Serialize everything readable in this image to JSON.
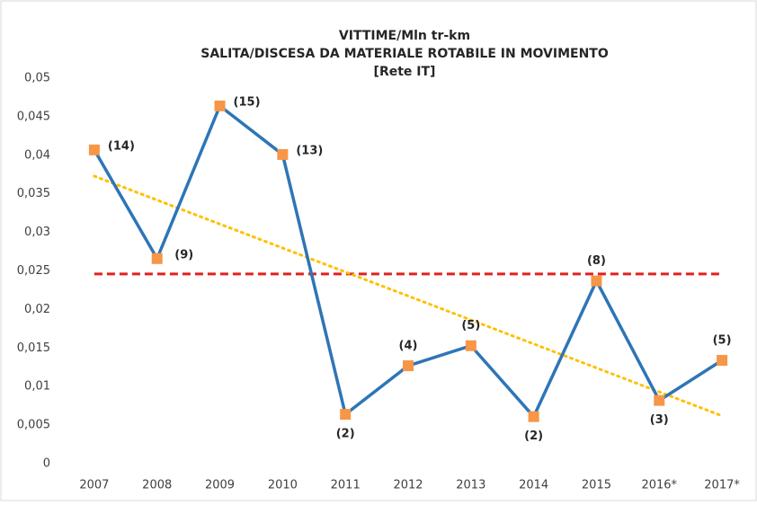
{
  "chart_data": {
    "type": "line",
    "title": [
      "VITTIME/Mln tr-km",
      "SALITA/DISCESA DA MATERIALE ROTABILE IN MOVIMENTO",
      "[Rete IT]"
    ],
    "categories": [
      "2007",
      "2008",
      "2009",
      "2010",
      "2011",
      "2012",
      "2013",
      "2014",
      "2015",
      "2016*",
      "2017*"
    ],
    "series": [
      {
        "color": "#2e75b6",
        "marker_color": "#f79646",
        "values": [
          0.0407,
          0.0266,
          0.0464,
          0.0401,
          0.0064,
          0.0127,
          0.0153,
          0.0061,
          0.0237,
          0.0082,
          0.0134
        ]
      }
    ],
    "annotations": [
      "(14)",
      "(9)",
      "(15)",
      "(13)",
      "(2)",
      "(4)",
      "(5)",
      "(2)",
      "(8)",
      "(3)",
      "(5)"
    ],
    "annotation_side": [
      "right",
      "right",
      "right",
      "right",
      "below",
      "above",
      "above",
      "below",
      "above",
      "below",
      "above"
    ],
    "mean_line": {
      "value": 0.0246,
      "color": "#e02020"
    },
    "trend_line": {
      "values": [
        0.0373,
        0.0062
      ],
      "color": "#ffc000"
    },
    "ylim": [
      0,
      0.05
    ],
    "yticks": [
      0,
      {
        "value": 0.005,
        "label": "0,005"
      },
      {
        "value": 0.01,
        "label": "0,01"
      },
      {
        "value": 0.015,
        "label": "0,015"
      },
      {
        "value": 0.02,
        "label": "0,02"
      },
      {
        "value": 0.025,
        "label": "0,025"
      },
      {
        "value": 0.03,
        "label": "0,03"
      },
      {
        "value": 0.035,
        "label": "0,035"
      },
      {
        "value": 0.04,
        "label": "0,04"
      },
      {
        "value": 0.045,
        "label": "0,045"
      },
      {
        "value": 0.05,
        "label": "0,05"
      }
    ]
  }
}
